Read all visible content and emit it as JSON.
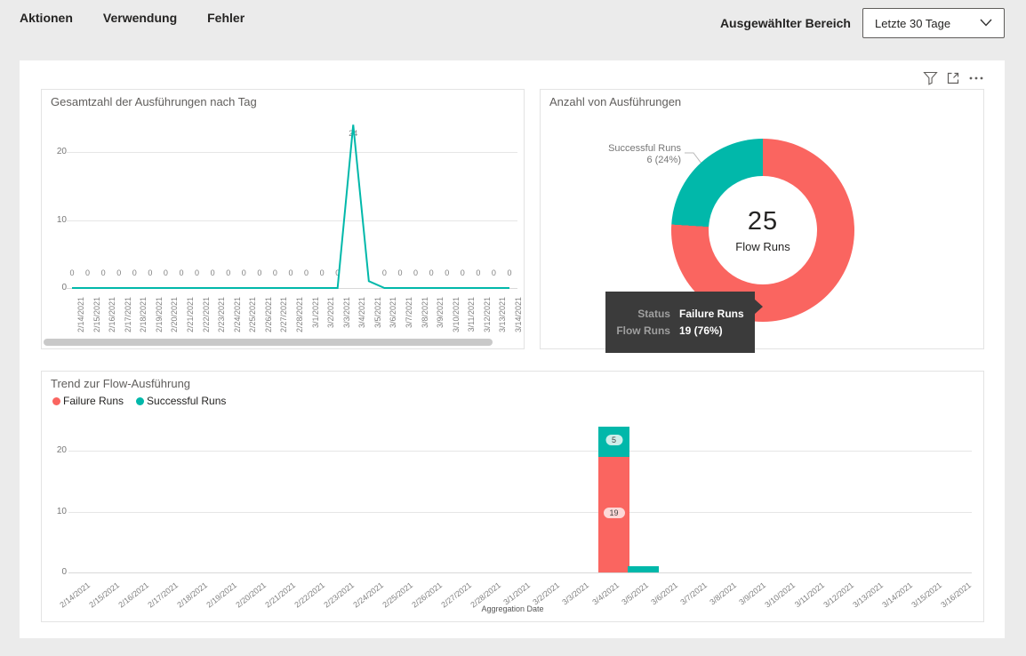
{
  "header": {
    "tabs": [
      {
        "label": "Aktionen"
      },
      {
        "label": "Verwendung"
      },
      {
        "label": "Fehler"
      }
    ],
    "range_label": "Ausgewählter Bereich",
    "range_value": "Letzte 30 Tage"
  },
  "toolbar": {
    "icons": [
      "filter-icon",
      "focus-mode-icon",
      "more-options-icon"
    ]
  },
  "colors": {
    "teal": "#01B8AA",
    "red": "#FA6560",
    "grid": "#e6e6e6",
    "tooltip_bg": "#3b3b3b"
  },
  "tooltip": {
    "rows": [
      {
        "label": "Status",
        "value": "Failure Runs"
      },
      {
        "label": "Flow Runs",
        "value": "19 (76%)"
      }
    ]
  },
  "chart_data": [
    {
      "type": "line",
      "title": "Gesamtzahl der Ausführungen nach Tag",
      "x": [
        "2/14/2021",
        "2/15/2021",
        "2/16/2021",
        "2/17/2021",
        "2/18/2021",
        "2/19/2021",
        "2/20/2021",
        "2/21/2021",
        "2/22/2021",
        "2/23/2021",
        "2/24/2021",
        "2/25/2021",
        "2/26/2021",
        "2/27/2021",
        "2/28/2021",
        "3/1/2021",
        "3/2/2021",
        "3/3/2021",
        "3/4/2021",
        "3/5/2021",
        "3/6/2021",
        "3/7/2021",
        "3/8/2021",
        "3/9/2021",
        "3/10/2021",
        "3/11/2021",
        "3/12/2021",
        "3/13/2021",
        "3/14/2021"
      ],
      "values": [
        0,
        0,
        0,
        0,
        0,
        0,
        0,
        0,
        0,
        0,
        0,
        0,
        0,
        0,
        0,
        0,
        0,
        0,
        24,
        1,
        0,
        0,
        0,
        0,
        0,
        0,
        0,
        0,
        0
      ],
      "point_labels": [
        "0",
        "0",
        "0",
        "0",
        "0",
        "0",
        "0",
        "0",
        "0",
        "0",
        "0",
        "0",
        "0",
        "0",
        "0",
        "0",
        "0",
        "0",
        "24",
        "",
        "0",
        "0",
        "0",
        "0",
        "0",
        "0",
        "0",
        "0",
        "0"
      ],
      "yticks": [
        0,
        10,
        20
      ],
      "ylim": [
        0,
        24
      ],
      "grid": true,
      "line_color": "#01B8AA",
      "has_h_scrollbar": true
    },
    {
      "type": "pie",
      "title": "Anzahl von Ausführungen",
      "center_value": "25",
      "center_label": "Flow Runs",
      "slices": [
        {
          "name": "Successful Runs",
          "value": 6,
          "pct": 24,
          "color": "#01B8AA"
        },
        {
          "name": "Failure Runs",
          "value": 19,
          "pct": 76,
          "color": "#FA6560"
        }
      ],
      "callout_line1": "Successful Runs",
      "callout_line2": "6 (24%)"
    },
    {
      "type": "bar",
      "title": "Trend zur Flow-Ausführung",
      "legend_position": "top",
      "categories": [
        "2/14/2021",
        "2/15/2021",
        "2/16/2021",
        "2/17/2021",
        "2/18/2021",
        "2/19/2021",
        "2/20/2021",
        "2/21/2021",
        "2/22/2021",
        "2/23/2021",
        "2/24/2021",
        "2/25/2021",
        "2/26/2021",
        "2/27/2021",
        "2/28/2021",
        "3/1/2021",
        "3/2/2021",
        "3/3/2021",
        "3/4/2021",
        "3/5/2021",
        "3/6/2021",
        "3/7/2021",
        "3/8/2021",
        "3/9/2021",
        "3/10/2021",
        "3/11/2021",
        "3/12/2021",
        "3/13/2021",
        "3/14/2021",
        "3/15/2021",
        "3/16/2021"
      ],
      "series": [
        {
          "name": "Failure Runs",
          "color": "#FA6560",
          "values": [
            0,
            0,
            0,
            0,
            0,
            0,
            0,
            0,
            0,
            0,
            0,
            0,
            0,
            0,
            0,
            0,
            0,
            0,
            19,
            0,
            0,
            0,
            0,
            0,
            0,
            0,
            0,
            0,
            0,
            0,
            0
          ]
        },
        {
          "name": "Successful Runs",
          "color": "#01B8AA",
          "values": [
            0,
            0,
            0,
            0,
            0,
            0,
            0,
            0,
            0,
            0,
            0,
            0,
            0,
            0,
            0,
            0,
            0,
            0,
            5,
            1,
            0,
            0,
            0,
            0,
            0,
            0,
            0,
            0,
            0,
            0,
            0
          ]
        }
      ],
      "bar_labels": [
        {
          "index": 18,
          "series": "Failure Runs",
          "text": "19"
        },
        {
          "index": 18,
          "series": "Successful Runs",
          "text": "5"
        }
      ],
      "yticks": [
        0,
        10,
        20
      ],
      "ylim": [
        0,
        24
      ],
      "xlabel": "Aggregation Date",
      "grid": true
    }
  ]
}
